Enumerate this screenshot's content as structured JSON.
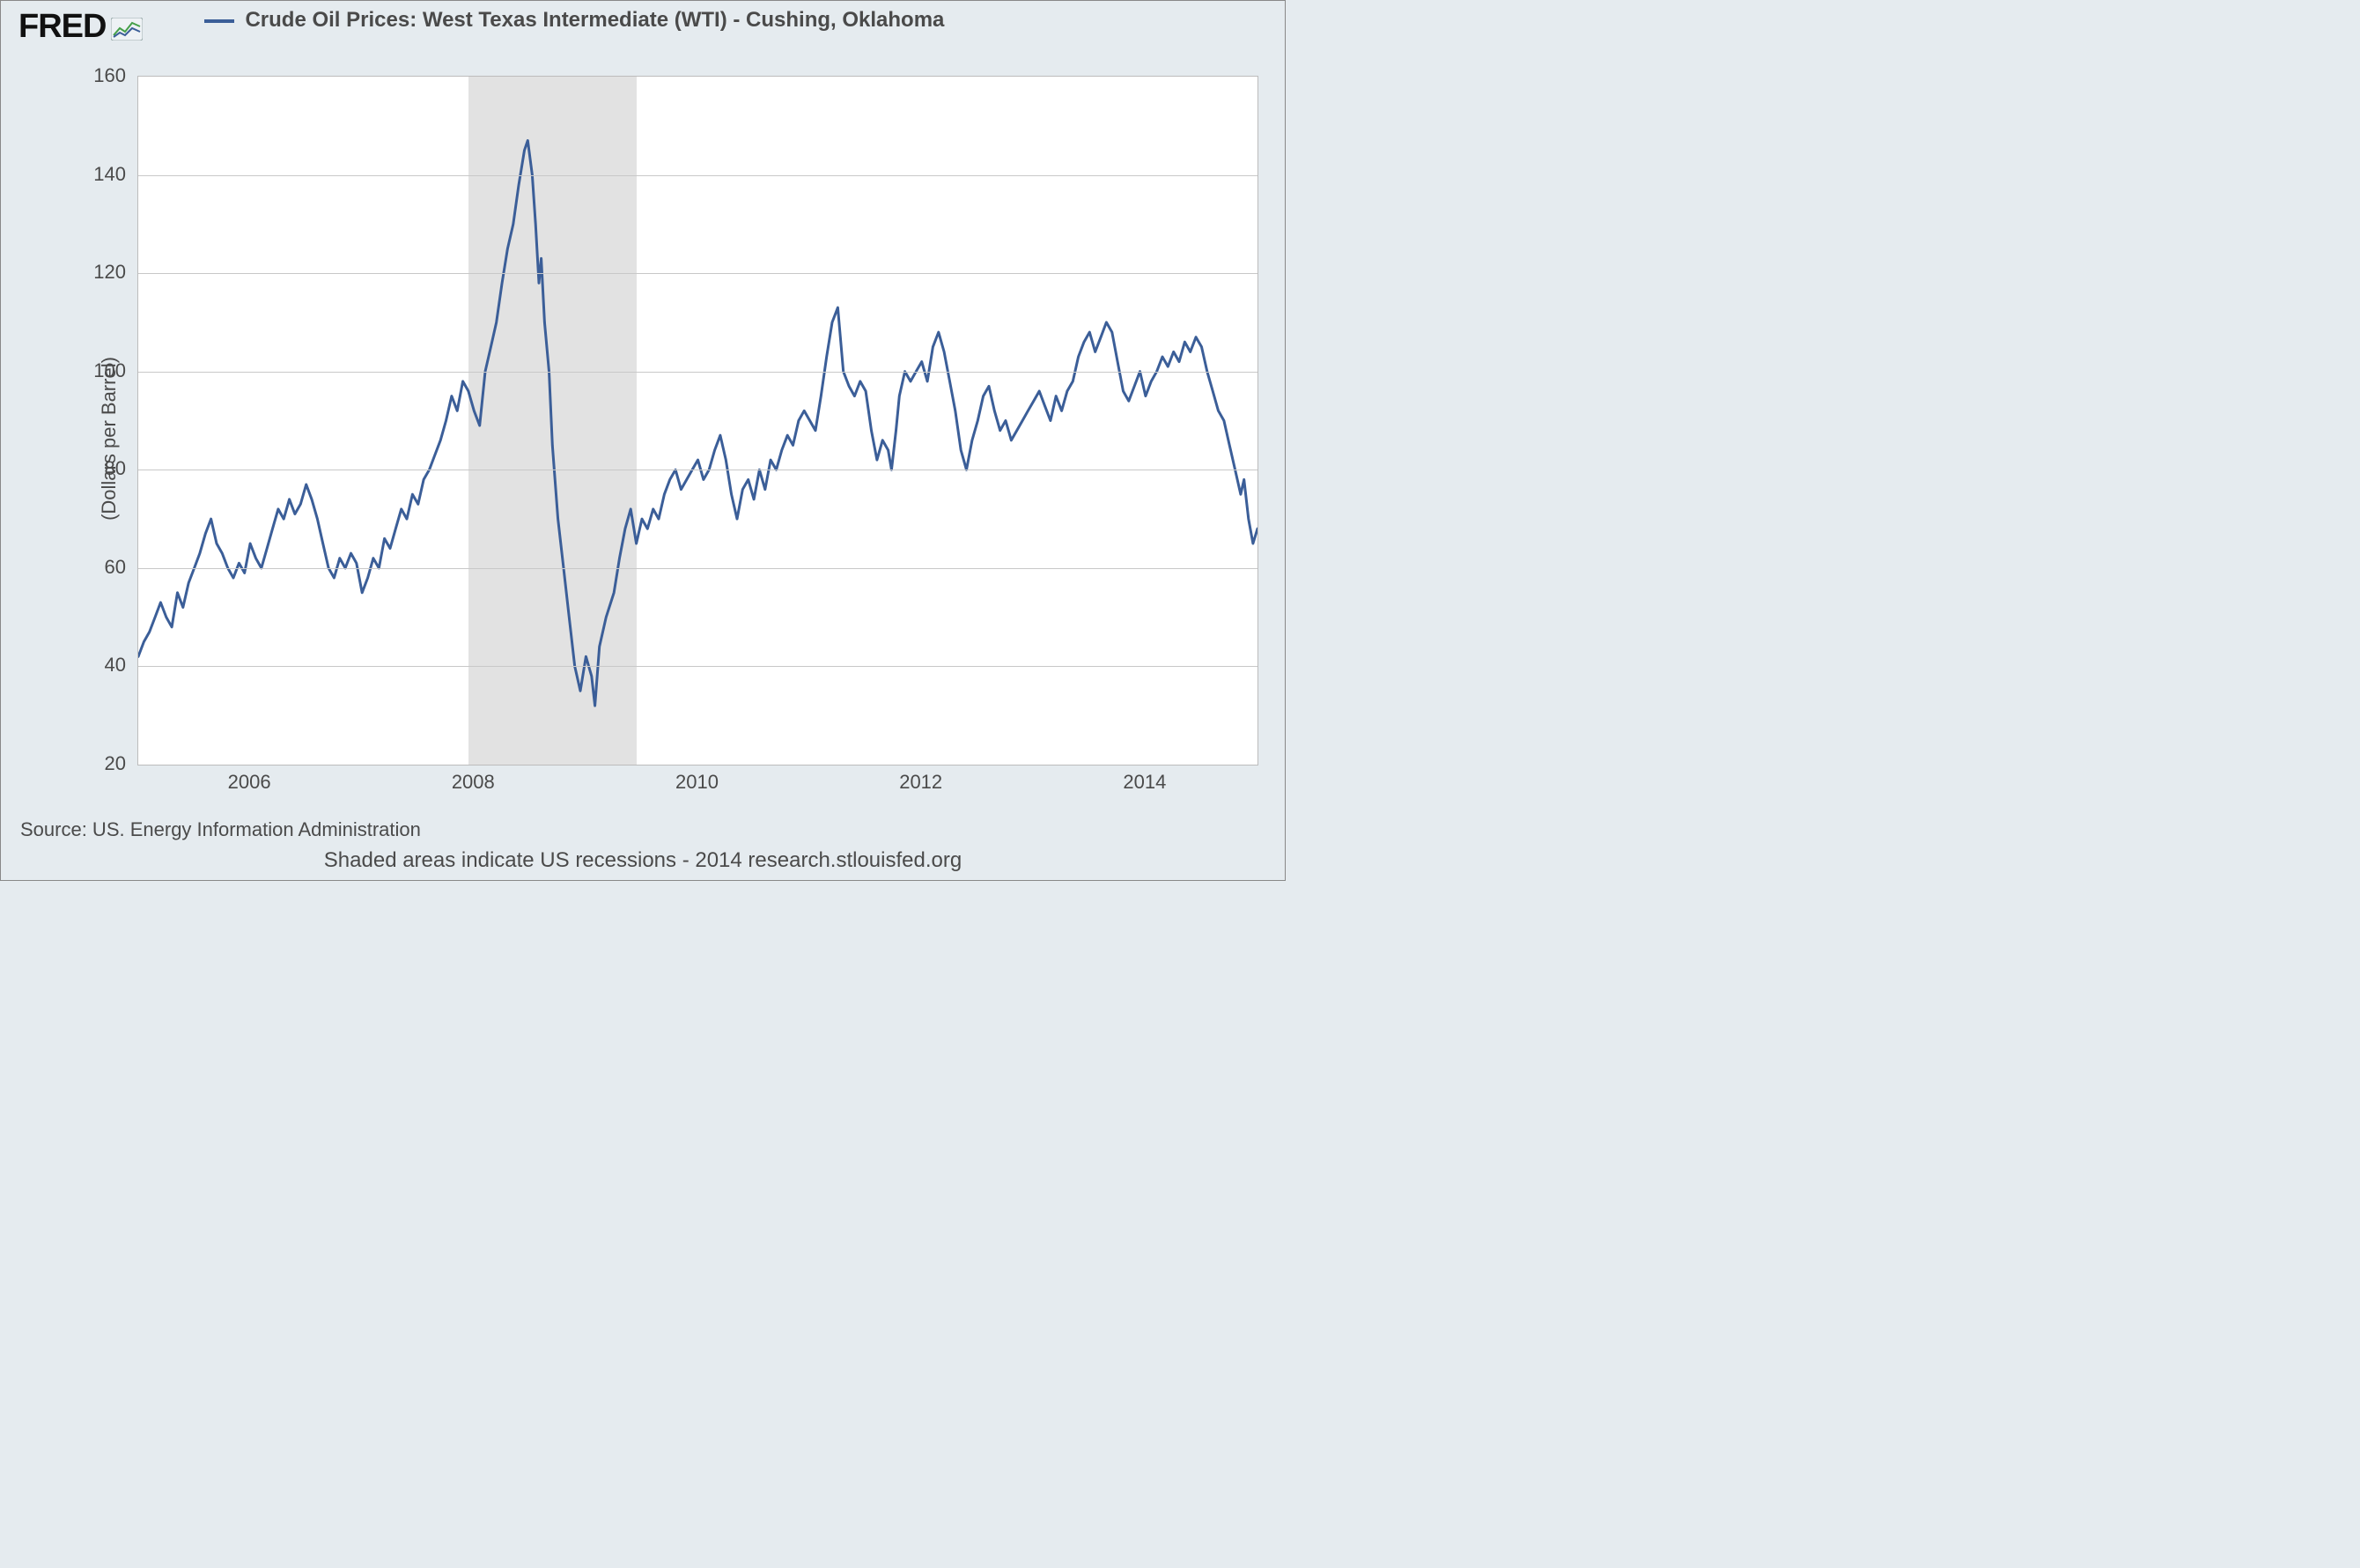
{
  "logo": {
    "text": "FRED",
    "icon_name": "fred-chart-icon"
  },
  "legend": {
    "series_label": "Crude Oil Prices: West Texas Intermediate (WTI) - Cushing, Oklahoma",
    "swatch_color": "#3b5e98"
  },
  "chart": {
    "type": "line",
    "background_color": "#ffffff",
    "page_background": "#e5ebef",
    "grid_color": "#c8c8c8",
    "border_color": "#bcbcbc",
    "line_color": "#3b5e98",
    "line_width": 3,
    "ylabel": "(Dollars per Barrel)",
    "label_fontsize": 22,
    "tick_fontsize": 22,
    "tick_color": "#4a4a4a",
    "ylim": [
      20,
      160
    ],
    "yticks": [
      20,
      40,
      60,
      80,
      100,
      120,
      140,
      160
    ],
    "x_domain": [
      2005.0,
      2015.0
    ],
    "xticks": [
      2006,
      2008,
      2010,
      2012,
      2014
    ],
    "recession_band": {
      "start": 2007.95,
      "end": 2009.45,
      "color": "#e2e2e2"
    },
    "series": [
      [
        2005.0,
        42
      ],
      [
        2005.05,
        45
      ],
      [
        2005.1,
        47
      ],
      [
        2005.15,
        50
      ],
      [
        2005.2,
        53
      ],
      [
        2005.25,
        50
      ],
      [
        2005.3,
        48
      ],
      [
        2005.35,
        55
      ],
      [
        2005.4,
        52
      ],
      [
        2005.45,
        57
      ],
      [
        2005.5,
        60
      ],
      [
        2005.55,
        63
      ],
      [
        2005.6,
        67
      ],
      [
        2005.65,
        70
      ],
      [
        2005.7,
        65
      ],
      [
        2005.75,
        63
      ],
      [
        2005.8,
        60
      ],
      [
        2005.85,
        58
      ],
      [
        2005.9,
        61
      ],
      [
        2005.95,
        59
      ],
      [
        2006.0,
        65
      ],
      [
        2006.05,
        62
      ],
      [
        2006.1,
        60
      ],
      [
        2006.15,
        64
      ],
      [
        2006.2,
        68
      ],
      [
        2006.25,
        72
      ],
      [
        2006.3,
        70
      ],
      [
        2006.35,
        74
      ],
      [
        2006.4,
        71
      ],
      [
        2006.45,
        73
      ],
      [
        2006.5,
        77
      ],
      [
        2006.55,
        74
      ],
      [
        2006.6,
        70
      ],
      [
        2006.65,
        65
      ],
      [
        2006.7,
        60
      ],
      [
        2006.75,
        58
      ],
      [
        2006.8,
        62
      ],
      [
        2006.85,
        60
      ],
      [
        2006.9,
        63
      ],
      [
        2006.95,
        61
      ],
      [
        2007.0,
        55
      ],
      [
        2007.05,
        58
      ],
      [
        2007.1,
        62
      ],
      [
        2007.15,
        60
      ],
      [
        2007.2,
        66
      ],
      [
        2007.25,
        64
      ],
      [
        2007.3,
        68
      ],
      [
        2007.35,
        72
      ],
      [
        2007.4,
        70
      ],
      [
        2007.45,
        75
      ],
      [
        2007.5,
        73
      ],
      [
        2007.55,
        78
      ],
      [
        2007.6,
        80
      ],
      [
        2007.65,
        83
      ],
      [
        2007.7,
        86
      ],
      [
        2007.75,
        90
      ],
      [
        2007.8,
        95
      ],
      [
        2007.85,
        92
      ],
      [
        2007.9,
        98
      ],
      [
        2007.95,
        96
      ],
      [
        2008.0,
        92
      ],
      [
        2008.05,
        89
      ],
      [
        2008.1,
        100
      ],
      [
        2008.15,
        105
      ],
      [
        2008.2,
        110
      ],
      [
        2008.25,
        118
      ],
      [
        2008.3,
        125
      ],
      [
        2008.35,
        130
      ],
      [
        2008.4,
        138
      ],
      [
        2008.45,
        145
      ],
      [
        2008.48,
        147
      ],
      [
        2008.52,
        140
      ],
      [
        2008.55,
        130
      ],
      [
        2008.58,
        118
      ],
      [
        2008.6,
        123
      ],
      [
        2008.63,
        110
      ],
      [
        2008.67,
        100
      ],
      [
        2008.7,
        85
      ],
      [
        2008.75,
        70
      ],
      [
        2008.8,
        60
      ],
      [
        2008.85,
        50
      ],
      [
        2008.9,
        40
      ],
      [
        2008.95,
        35
      ],
      [
        2009.0,
        42
      ],
      [
        2009.05,
        38
      ],
      [
        2009.08,
        32
      ],
      [
        2009.12,
        44
      ],
      [
        2009.18,
        50
      ],
      [
        2009.25,
        55
      ],
      [
        2009.3,
        62
      ],
      [
        2009.35,
        68
      ],
      [
        2009.4,
        72
      ],
      [
        2009.45,
        65
      ],
      [
        2009.5,
        70
      ],
      [
        2009.55,
        68
      ],
      [
        2009.6,
        72
      ],
      [
        2009.65,
        70
      ],
      [
        2009.7,
        75
      ],
      [
        2009.75,
        78
      ],
      [
        2009.8,
        80
      ],
      [
        2009.85,
        76
      ],
      [
        2009.9,
        78
      ],
      [
        2009.95,
        80
      ],
      [
        2010.0,
        82
      ],
      [
        2010.05,
        78
      ],
      [
        2010.1,
        80
      ],
      [
        2010.15,
        84
      ],
      [
        2010.2,
        87
      ],
      [
        2010.25,
        82
      ],
      [
        2010.3,
        75
      ],
      [
        2010.35,
        70
      ],
      [
        2010.4,
        76
      ],
      [
        2010.45,
        78
      ],
      [
        2010.5,
        74
      ],
      [
        2010.55,
        80
      ],
      [
        2010.6,
        76
      ],
      [
        2010.65,
        82
      ],
      [
        2010.7,
        80
      ],
      [
        2010.75,
        84
      ],
      [
        2010.8,
        87
      ],
      [
        2010.85,
        85
      ],
      [
        2010.9,
        90
      ],
      [
        2010.95,
        92
      ],
      [
        2011.0,
        90
      ],
      [
        2011.05,
        88
      ],
      [
        2011.1,
        95
      ],
      [
        2011.15,
        103
      ],
      [
        2011.2,
        110
      ],
      [
        2011.25,
        113
      ],
      [
        2011.3,
        100
      ],
      [
        2011.35,
        97
      ],
      [
        2011.4,
        95
      ],
      [
        2011.45,
        98
      ],
      [
        2011.5,
        96
      ],
      [
        2011.55,
        88
      ],
      [
        2011.6,
        82
      ],
      [
        2011.65,
        86
      ],
      [
        2011.7,
        84
      ],
      [
        2011.73,
        80
      ],
      [
        2011.77,
        88
      ],
      [
        2011.8,
        95
      ],
      [
        2011.85,
        100
      ],
      [
        2011.9,
        98
      ],
      [
        2011.95,
        100
      ],
      [
        2012.0,
        102
      ],
      [
        2012.05,
        98
      ],
      [
        2012.1,
        105
      ],
      [
        2012.15,
        108
      ],
      [
        2012.2,
        104
      ],
      [
        2012.25,
        98
      ],
      [
        2012.3,
        92
      ],
      [
        2012.35,
        84
      ],
      [
        2012.4,
        80
      ],
      [
        2012.45,
        86
      ],
      [
        2012.5,
        90
      ],
      [
        2012.55,
        95
      ],
      [
        2012.6,
        97
      ],
      [
        2012.65,
        92
      ],
      [
        2012.7,
        88
      ],
      [
        2012.75,
        90
      ],
      [
        2012.8,
        86
      ],
      [
        2012.85,
        88
      ],
      [
        2012.9,
        90
      ],
      [
        2012.95,
        92
      ],
      [
        2013.0,
        94
      ],
      [
        2013.05,
        96
      ],
      [
        2013.1,
        93
      ],
      [
        2013.15,
        90
      ],
      [
        2013.2,
        95
      ],
      [
        2013.25,
        92
      ],
      [
        2013.3,
        96
      ],
      [
        2013.35,
        98
      ],
      [
        2013.4,
        103
      ],
      [
        2013.45,
        106
      ],
      [
        2013.5,
        108
      ],
      [
        2013.55,
        104
      ],
      [
        2013.6,
        107
      ],
      [
        2013.65,
        110
      ],
      [
        2013.7,
        108
      ],
      [
        2013.75,
        102
      ],
      [
        2013.8,
        96
      ],
      [
        2013.85,
        94
      ],
      [
        2013.9,
        97
      ],
      [
        2013.95,
        100
      ],
      [
        2014.0,
        95
      ],
      [
        2014.05,
        98
      ],
      [
        2014.1,
        100
      ],
      [
        2014.15,
        103
      ],
      [
        2014.2,
        101
      ],
      [
        2014.25,
        104
      ],
      [
        2014.3,
        102
      ],
      [
        2014.35,
        106
      ],
      [
        2014.4,
        104
      ],
      [
        2014.45,
        107
      ],
      [
        2014.5,
        105
      ],
      [
        2014.55,
        100
      ],
      [
        2014.6,
        96
      ],
      [
        2014.65,
        92
      ],
      [
        2014.7,
        90
      ],
      [
        2014.75,
        85
      ],
      [
        2014.8,
        80
      ],
      [
        2014.85,
        75
      ],
      [
        2014.88,
        78
      ],
      [
        2014.92,
        70
      ],
      [
        2014.96,
        65
      ],
      [
        2015.0,
        68
      ]
    ]
  },
  "source": "Source: US. Energy Information Administration",
  "footnote": "Shaded areas indicate US recessions - 2014 research.stlouisfed.org"
}
